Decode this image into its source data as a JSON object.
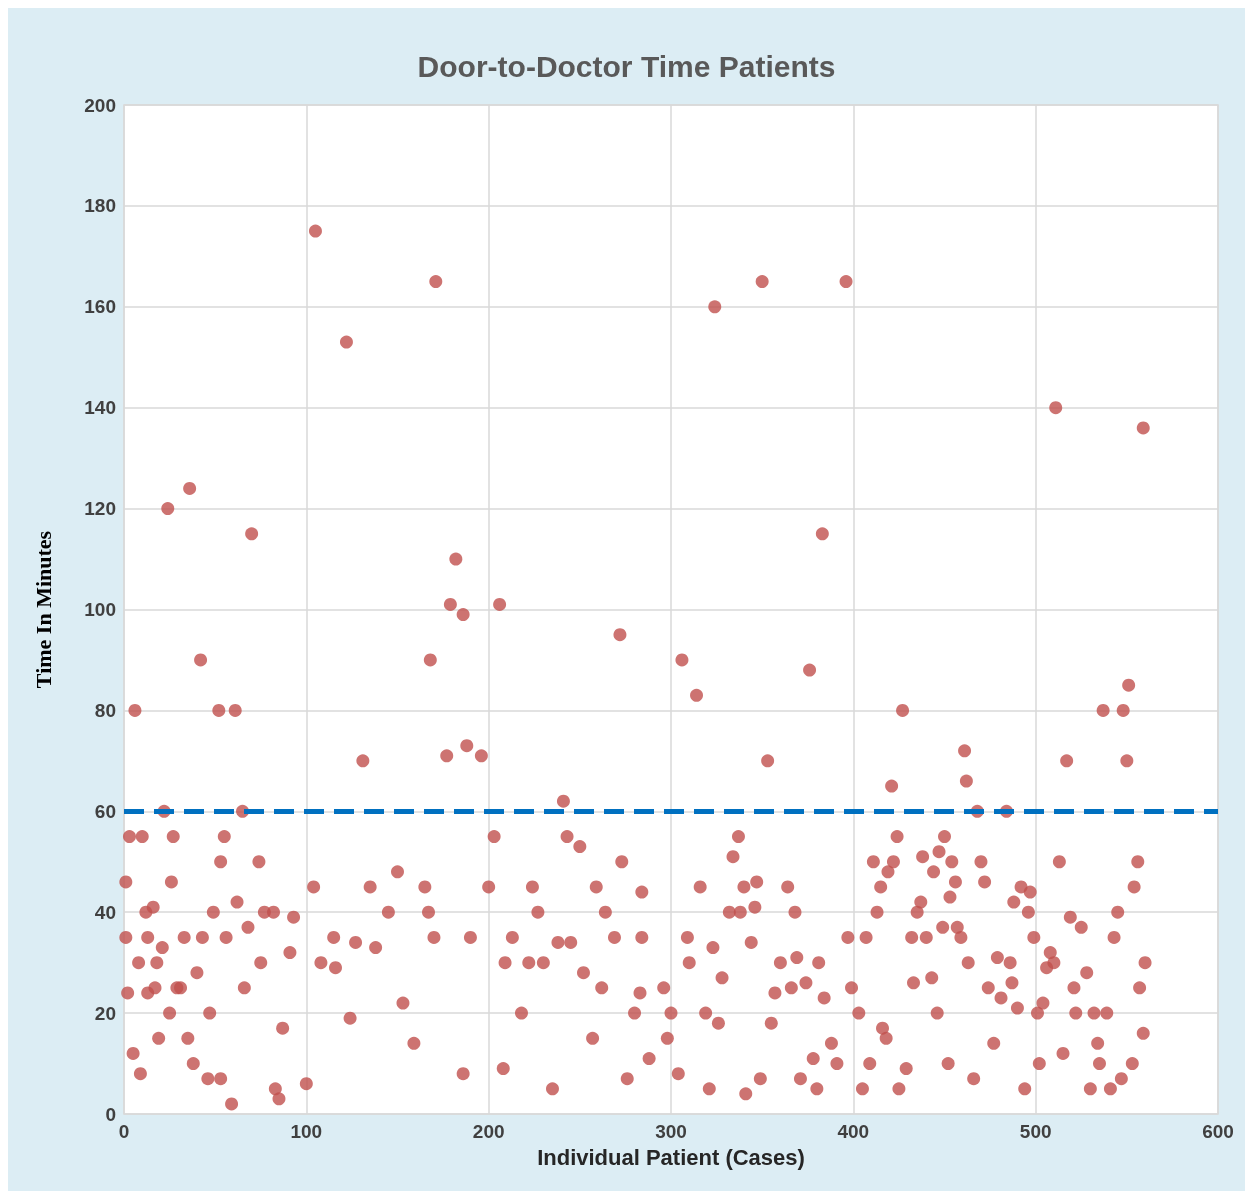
{
  "chart_data": {
    "type": "scatter",
    "title": "Door-to-Doctor Time Patients",
    "xlabel": "Individual Patient (Cases)",
    "ylabel": "Time In Minutes",
    "x": [
      1,
      1,
      2,
      5,
      6,
      3,
      10,
      8,
      9,
      12,
      13,
      13,
      16,
      17,
      18,
      19,
      21,
      22,
      24,
      25,
      26,
      27,
      29,
      31,
      33,
      36,
      35,
      38,
      40,
      42,
      43,
      46,
      47,
      49,
      52,
      53,
      55,
      53,
      56,
      59,
      61,
      62,
      65,
      66,
      70,
      68,
      74,
      75,
      77,
      82,
      83,
      85,
      87,
      91,
      93,
      100,
      104,
      105,
      108,
      116,
      115,
      122,
      124,
      127,
      131,
      135,
      138,
      145,
      150,
      153,
      159,
      165,
      167,
      170,
      168,
      171,
      177,
      179,
      182,
      186,
      188,
      196,
      186,
      190,
      200,
      203,
      206,
      208,
      209,
      213,
      218,
      222,
      224,
      227,
      230,
      235,
      238,
      241,
      243,
      245,
      250,
      252,
      257,
      259,
      262,
      264,
      269,
      272,
      273,
      276,
      280,
      283,
      284,
      284,
      288,
      296,
      298,
      300,
      304,
      306,
      309,
      310,
      314,
      316,
      319,
      321,
      323,
      324,
      326,
      328,
      332,
      334,
      337,
      338,
      340,
      341,
      344,
      346,
      347,
      349,
      350,
      353,
      355,
      357,
      360,
      364,
      366,
      368,
      369,
      371,
      374,
      376,
      378,
      380,
      381,
      383,
      384,
      388,
      391,
      396,
      397,
      399,
      403,
      405,
      407,
      409,
      411,
      413,
      415,
      416,
      418,
      419,
      421,
      422,
      424,
      425,
      427,
      429,
      432,
      433,
      435,
      437,
      438,
      440,
      443,
      444,
      446,
      447,
      449,
      450,
      452,
      453,
      454,
      456,
      457,
      459,
      461,
      462,
      463,
      466,
      468,
      470,
      472,
      474,
      477,
      479,
      481,
      484,
      486,
      487,
      488,
      490,
      492,
      494,
      496,
      497,
      499,
      501,
      502,
      504,
      506,
      508,
      510,
      511,
      513,
      515,
      517,
      519,
      521,
      522,
      525,
      528,
      530,
      532,
      534,
      535,
      537,
      539,
      541,
      543,
      545,
      547,
      548,
      550,
      551,
      553,
      554,
      556,
      557,
      559,
      559,
      560
    ],
    "values": [
      46,
      35,
      24,
      12,
      80,
      55,
      55,
      30,
      8,
      40,
      24,
      35,
      41,
      25,
      30,
      15,
      33,
      60,
      120,
      20,
      46,
      55,
      25,
      25,
      35,
      124,
      15,
      10,
      28,
      90,
      35,
      7,
      20,
      40,
      80,
      50,
      55,
      7,
      35,
      2,
      80,
      42,
      60,
      25,
      115,
      37,
      50,
      30,
      40,
      40,
      5,
      3,
      17,
      32,
      39,
      6,
      45,
      175,
      30,
      29,
      35,
      153,
      19,
      34,
      70,
      45,
      33,
      40,
      48,
      22,
      14,
      45,
      40,
      35,
      90,
      165,
      71,
      101,
      110,
      99,
      73,
      71,
      8,
      35,
      45,
      55,
      101,
      9,
      30,
      35,
      20,
      30,
      45,
      40,
      30,
      5,
      34,
      62,
      55,
      34,
      53,
      28,
      15,
      45,
      25,
      40,
      35,
      95,
      50,
      7,
      20,
      24,
      44,
      35,
      11,
      25,
      15,
      20,
      8,
      90,
      35,
      30,
      83,
      45,
      20,
      5,
      33,
      160,
      18,
      27,
      40,
      51,
      55,
      40,
      45,
      4,
      34,
      41,
      46,
      7,
      165,
      70,
      18,
      24,
      30,
      45,
      25,
      40,
      31,
      7,
      26,
      88,
      11,
      5,
      30,
      115,
      23,
      14,
      10,
      165,
      35,
      25,
      20,
      5,
      35,
      10,
      50,
      40,
      45,
      17,
      15,
      48,
      65,
      50,
      55,
      5,
      80,
      9,
      35,
      26,
      40,
      42,
      51,
      35,
      27,
      48,
      20,
      52,
      37,
      55,
      10,
      43,
      50,
      46,
      37,
      35,
      72,
      66,
      30,
      7,
      60,
      50,
      46,
      25,
      14,
      31,
      23,
      60,
      30,
      26,
      42,
      21,
      45,
      5,
      40,
      44,
      35,
      20,
      10,
      22,
      29,
      32,
      30,
      140,
      50,
      12,
      70,
      39,
      25,
      20,
      37,
      28,
      5,
      20,
      14,
      10,
      80,
      20,
      5,
      35,
      40,
      7,
      80,
      70,
      85,
      10,
      45,
      50,
      25,
      136,
      16,
      30
    ],
    "color": "#c0504d",
    "marker": "circle",
    "xlim": [
      0,
      600
    ],
    "xticks": [
      0,
      100,
      200,
      300,
      400,
      500,
      600
    ],
    "ylim": [
      0,
      200
    ],
    "yticks": [
      0,
      20,
      40,
      60,
      80,
      100,
      120,
      140,
      160,
      180,
      200
    ],
    "grid": true,
    "ref_lines": [
      {
        "axis": "y",
        "value": 60,
        "color": "#0070c0",
        "line_style": "dashed"
      }
    ]
  }
}
